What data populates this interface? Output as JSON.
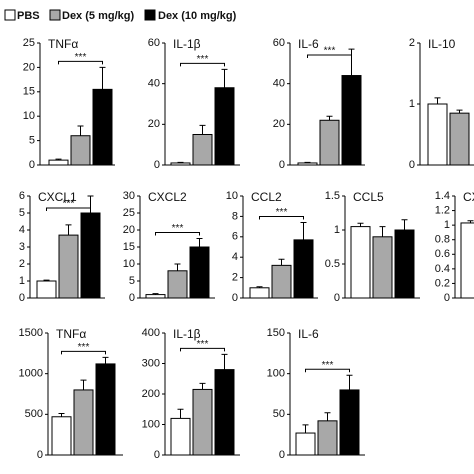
{
  "legend": [
    {
      "name": "PBS",
      "color": "#ffffff"
    },
    {
      "name": "Dex (5 mg/kg)",
      "color": "#a8a8a8"
    },
    {
      "name": "Dex (10 mg/kg)",
      "color": "#000000"
    }
  ],
  "chart_data": [
    {
      "type": "bar",
      "title": "TNFα",
      "categories": [
        null,
        null,
        null
      ],
      "values": [
        1,
        6,
        15.5
      ],
      "errors": [
        0.2,
        2,
        4.5
      ],
      "ylim": [
        0,
        25
      ],
      "yticks": [
        0,
        5,
        10,
        15,
        20,
        25
      ],
      "significance": "***"
    },
    {
      "type": "bar",
      "title": "IL-1β",
      "categories": [
        null,
        null,
        null
      ],
      "values": [
        1,
        15,
        38
      ],
      "errors": [
        0.3,
        4.5,
        9
      ],
      "ylim": [
        0,
        60
      ],
      "yticks": [
        0,
        20,
        40,
        60
      ],
      "significance": "***"
    },
    {
      "type": "bar",
      "title": "IL-6",
      "categories": [
        null,
        null,
        null
      ],
      "values": [
        1,
        22,
        44
      ],
      "errors": [
        0.3,
        2,
        13
      ],
      "ylim": [
        0,
        60
      ],
      "yticks": [
        0,
        20,
        40,
        60
      ],
      "significance": "***"
    },
    {
      "type": "bar",
      "title": "IL-10",
      "categories": [
        null,
        null
      ],
      "values": [
        1,
        0.85
      ],
      "errors": [
        0.1,
        0.05
      ],
      "ylim": [
        0,
        2
      ],
      "yticks": [
        0,
        1,
        2
      ]
    },
    {
      "type": "bar",
      "title": "CXCL1",
      "categories": [
        null,
        null,
        null
      ],
      "values": [
        1,
        3.7,
        5
      ],
      "errors": [
        0.05,
        0.6,
        1
      ],
      "ylim": [
        0,
        6
      ],
      "yticks": [
        0,
        1,
        2,
        3,
        4,
        5,
        6
      ],
      "significance": "***"
    },
    {
      "type": "bar",
      "title": "CXCL2",
      "categories": [
        null,
        null,
        null
      ],
      "values": [
        1,
        8,
        15
      ],
      "errors": [
        0.3,
        2,
        2.5
      ],
      "ylim": [
        0,
        30
      ],
      "yticks": [
        0,
        5,
        10,
        15,
        20,
        25,
        30
      ],
      "significance": "***"
    },
    {
      "type": "bar",
      "title": "CCL2",
      "categories": [
        null,
        null,
        null
      ],
      "values": [
        1,
        3.2,
        5.7
      ],
      "errors": [
        0.1,
        0.6,
        1.7
      ],
      "ylim": [
        0,
        10
      ],
      "yticks": [
        0,
        2,
        4,
        6,
        8,
        10
      ],
      "significance": "***"
    },
    {
      "type": "bar",
      "title": "CCL5",
      "categories": [
        null,
        null,
        null
      ],
      "values": [
        1.05,
        0.9,
        1
      ],
      "errors": [
        0.05,
        0.15,
        0.15
      ],
      "ylim": [
        0,
        1.5
      ],
      "yticks": [
        0,
        0.5,
        1,
        1.5
      ]
    },
    {
      "type": "bar",
      "title": "CX",
      "categories": [
        null
      ],
      "values": [
        1.03
      ],
      "errors": [
        0.03
      ],
      "ylim": [
        0,
        1.4
      ],
      "yticks": [
        0,
        0.2,
        0.4,
        0.6,
        0.8,
        1,
        1.2,
        1.4
      ]
    },
    {
      "type": "bar",
      "title": "TNFα",
      "categories": [
        null,
        null,
        null
      ],
      "values": [
        470,
        800,
        1120
      ],
      "errors": [
        40,
        120,
        80
      ],
      "ylim": [
        0,
        1500
      ],
      "yticks": [
        0,
        500,
        1000,
        1500
      ],
      "significance": "***"
    },
    {
      "type": "bar",
      "title": "IL-1β",
      "categories": [
        null,
        null,
        null
      ],
      "values": [
        120,
        215,
        280
      ],
      "errors": [
        30,
        20,
        50
      ],
      "ylim": [
        0,
        400
      ],
      "yticks": [
        0,
        100,
        200,
        300,
        400
      ],
      "significance": "***"
    },
    {
      "type": "bar",
      "title": "IL-6",
      "categories": [
        null,
        null,
        null
      ],
      "values": [
        27,
        42,
        80
      ],
      "errors": [
        10,
        10,
        18
      ],
      "ylim": [
        0,
        150
      ],
      "yticks": [
        0,
        50,
        100,
        150
      ],
      "significance": "***"
    }
  ]
}
